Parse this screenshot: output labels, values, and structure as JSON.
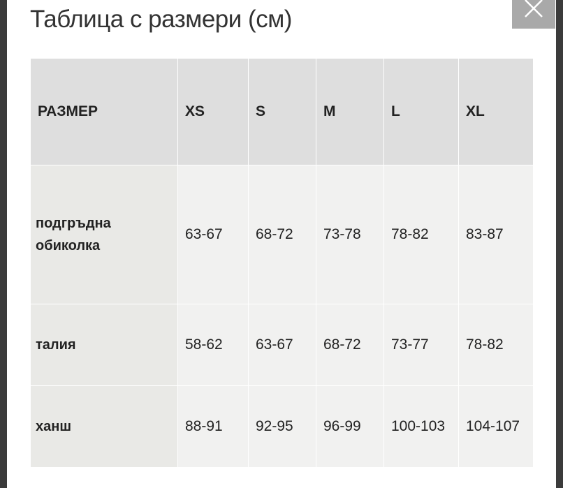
{
  "title": "Таблица с размери (см)",
  "close_icon": "close-x-icon",
  "table": {
    "headers": [
      "РАЗМЕР",
      "XS",
      "S",
      "M",
      "L",
      "XL"
    ],
    "rows": [
      {
        "label": "подгръдна обиколка",
        "values": [
          "63-67",
          "68-72",
          "73-78",
          "78-82",
          "83-87"
        ]
      },
      {
        "label": "талия",
        "values": [
          "58-62",
          "63-67",
          "68-72",
          "73-77",
          "78-82"
        ]
      },
      {
        "label": "ханш",
        "values": [
          "88-91",
          "92-95",
          "96-99",
          "100-103",
          "104-107"
        ]
      }
    ]
  }
}
